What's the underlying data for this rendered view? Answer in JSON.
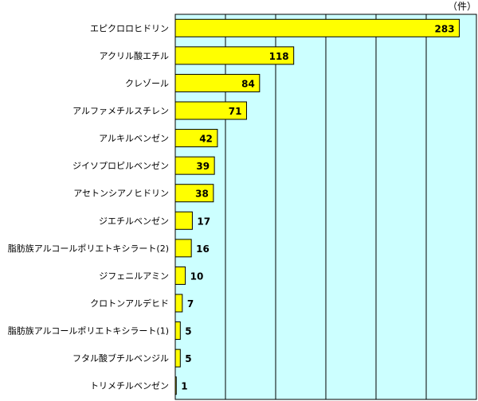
{
  "chart_data": {
    "type": "bar",
    "orientation": "horizontal",
    "unit_label": "（件）",
    "categories": [
      "エピクロロヒドリン",
      "アクリル酸エチル",
      "クレゾール",
      "アルファメチルスチレン",
      "アルキルベンゼン",
      "ジイソプロピルベンゼン",
      "アセトンシアノヒドリン",
      "ジエチルベンゼン",
      "脂肪族アルコールポリエトキシラート(2)",
      "ジフェニルアミン",
      "クロトンアルデヒド",
      "脂肪族アルコールポリエトキシラート(1)",
      "フタル酸ブチルベンジル",
      "トリメチルベンゼン"
    ],
    "values": [
      283,
      118,
      84,
      71,
      42,
      39,
      38,
      17,
      16,
      10,
      7,
      5,
      5,
      1
    ],
    "xlim": [
      0,
      300
    ],
    "grid": true,
    "colors": {
      "bar": "#ffff00",
      "bar_border": "#000000",
      "plot_background": "#ccffff",
      "grid": "#000000"
    }
  }
}
